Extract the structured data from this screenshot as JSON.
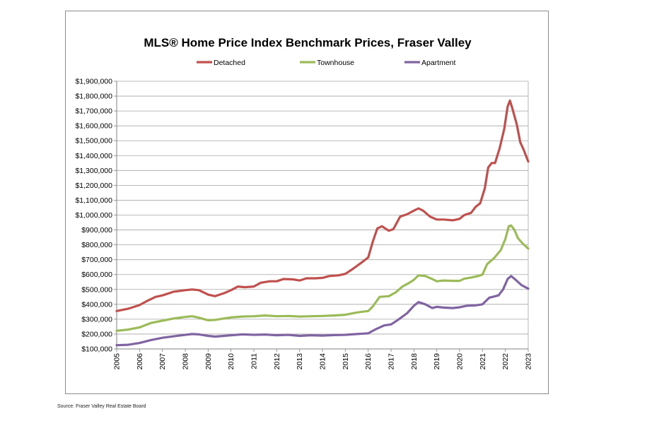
{
  "source": "Source: Fraser Valley Real Estate Board",
  "chart_data": {
    "type": "line",
    "title": "MLS® Home Price Index Benchmark Prices, Fraser Valley",
    "xlabel": "",
    "ylabel": "",
    "xlim": [
      2005,
      2023
    ],
    "ylim": [
      100000,
      1900000
    ],
    "x_ticks": [
      "2005",
      "2006",
      "2007",
      "2008",
      "2009",
      "2010",
      "2011",
      "2012",
      "2013",
      "2014",
      "2015",
      "2016",
      "2017",
      "2018",
      "2019",
      "2020",
      "2021",
      "2022",
      "2023"
    ],
    "y_ticks": [
      "$100,000",
      "$200,000",
      "$300,000",
      "$400,000",
      "$500,000",
      "$600,000",
      "$700,000",
      "$800,000",
      "$900,000",
      "$1,000,000",
      "$1,100,000",
      "$1,200,000",
      "$1,300,000",
      "$1,400,000",
      "$1,500,000",
      "$1,600,000",
      "$1,700,000",
      "$1,800,000",
      "$1,900,000"
    ],
    "grid": true,
    "legend": "top",
    "series": [
      {
        "name": "Detached",
        "color": "#c0504d",
        "points": [
          [
            2005.0,
            355000
          ],
          [
            2005.5,
            370000
          ],
          [
            2006.0,
            395000
          ],
          [
            2006.3,
            420000
          ],
          [
            2006.7,
            450000
          ],
          [
            2007.0,
            460000
          ],
          [
            2007.5,
            485000
          ],
          [
            2008.0,
            495000
          ],
          [
            2008.3,
            500000
          ],
          [
            2008.6,
            495000
          ],
          [
            2009.0,
            465000
          ],
          [
            2009.3,
            455000
          ],
          [
            2009.7,
            475000
          ],
          [
            2010.0,
            495000
          ],
          [
            2010.3,
            520000
          ],
          [
            2010.6,
            515000
          ],
          [
            2011.0,
            520000
          ],
          [
            2011.3,
            545000
          ],
          [
            2011.7,
            555000
          ],
          [
            2012.0,
            555000
          ],
          [
            2012.3,
            570000
          ],
          [
            2012.7,
            568000
          ],
          [
            2013.0,
            560000
          ],
          [
            2013.3,
            575000
          ],
          [
            2013.7,
            575000
          ],
          [
            2014.0,
            578000
          ],
          [
            2014.3,
            590000
          ],
          [
            2014.7,
            595000
          ],
          [
            2015.0,
            605000
          ],
          [
            2015.3,
            635000
          ],
          [
            2015.7,
            680000
          ],
          [
            2016.0,
            715000
          ],
          [
            2016.2,
            820000
          ],
          [
            2016.4,
            910000
          ],
          [
            2016.6,
            925000
          ],
          [
            2016.9,
            895000
          ],
          [
            2017.1,
            905000
          ],
          [
            2017.4,
            990000
          ],
          [
            2017.7,
            1005000
          ],
          [
            2018.0,
            1030000
          ],
          [
            2018.2,
            1045000
          ],
          [
            2018.4,
            1030000
          ],
          [
            2018.7,
            990000
          ],
          [
            2019.0,
            970000
          ],
          [
            2019.3,
            970000
          ],
          [
            2019.7,
            965000
          ],
          [
            2020.0,
            975000
          ],
          [
            2020.2,
            1000000
          ],
          [
            2020.5,
            1015000
          ],
          [
            2020.7,
            1055000
          ],
          [
            2020.9,
            1080000
          ],
          [
            2021.1,
            1180000
          ],
          [
            2021.25,
            1320000
          ],
          [
            2021.4,
            1350000
          ],
          [
            2021.55,
            1350000
          ],
          [
            2021.75,
            1450000
          ],
          [
            2021.95,
            1580000
          ],
          [
            2022.1,
            1730000
          ],
          [
            2022.2,
            1770000
          ],
          [
            2022.3,
            1720000
          ],
          [
            2022.5,
            1610000
          ],
          [
            2022.65,
            1490000
          ],
          [
            2022.8,
            1440000
          ],
          [
            2023.0,
            1360000
          ]
        ]
      },
      {
        "name": "Townhouse",
        "color": "#9bbb59",
        "points": [
          [
            2005.0,
            222000
          ],
          [
            2005.5,
            230000
          ],
          [
            2006.0,
            245000
          ],
          [
            2006.5,
            275000
          ],
          [
            2007.0,
            290000
          ],
          [
            2007.5,
            305000
          ],
          [
            2008.0,
            315000
          ],
          [
            2008.3,
            320000
          ],
          [
            2008.6,
            310000
          ],
          [
            2009.0,
            293000
          ],
          [
            2009.3,
            295000
          ],
          [
            2009.7,
            305000
          ],
          [
            2010.0,
            312000
          ],
          [
            2010.5,
            318000
          ],
          [
            2011.0,
            320000
          ],
          [
            2011.5,
            325000
          ],
          [
            2012.0,
            320000
          ],
          [
            2012.5,
            322000
          ],
          [
            2013.0,
            318000
          ],
          [
            2013.5,
            320000
          ],
          [
            2014.0,
            322000
          ],
          [
            2014.5,
            325000
          ],
          [
            2015.0,
            330000
          ],
          [
            2015.5,
            345000
          ],
          [
            2016.0,
            355000
          ],
          [
            2016.2,
            385000
          ],
          [
            2016.5,
            450000
          ],
          [
            2016.9,
            455000
          ],
          [
            2017.2,
            480000
          ],
          [
            2017.5,
            520000
          ],
          [
            2017.8,
            545000
          ],
          [
            2018.0,
            565000
          ],
          [
            2018.2,
            595000
          ],
          [
            2018.5,
            590000
          ],
          [
            2018.8,
            570000
          ],
          [
            2019.0,
            555000
          ],
          [
            2019.3,
            560000
          ],
          [
            2019.7,
            558000
          ],
          [
            2020.0,
            558000
          ],
          [
            2020.2,
            572000
          ],
          [
            2020.5,
            580000
          ],
          [
            2020.8,
            590000
          ],
          [
            2021.0,
            600000
          ],
          [
            2021.2,
            670000
          ],
          [
            2021.5,
            710000
          ],
          [
            2021.8,
            765000
          ],
          [
            2022.0,
            840000
          ],
          [
            2022.15,
            925000
          ],
          [
            2022.25,
            930000
          ],
          [
            2022.4,
            900000
          ],
          [
            2022.55,
            845000
          ],
          [
            2022.75,
            810000
          ],
          [
            2023.0,
            775000
          ]
        ]
      },
      {
        "name": "Apartment",
        "color": "#8064a2",
        "points": [
          [
            2005.0,
            125000
          ],
          [
            2005.5,
            128000
          ],
          [
            2006.0,
            140000
          ],
          [
            2006.5,
            160000
          ],
          [
            2007.0,
            175000
          ],
          [
            2007.5,
            185000
          ],
          [
            2008.0,
            195000
          ],
          [
            2008.3,
            200000
          ],
          [
            2008.6,
            198000
          ],
          [
            2009.0,
            188000
          ],
          [
            2009.3,
            183000
          ],
          [
            2009.7,
            188000
          ],
          [
            2010.0,
            192000
          ],
          [
            2010.5,
            198000
          ],
          [
            2011.0,
            195000
          ],
          [
            2011.5,
            197000
          ],
          [
            2012.0,
            192000
          ],
          [
            2012.5,
            195000
          ],
          [
            2013.0,
            188000
          ],
          [
            2013.5,
            192000
          ],
          [
            2014.0,
            190000
          ],
          [
            2014.5,
            193000
          ],
          [
            2015.0,
            195000
          ],
          [
            2015.5,
            200000
          ],
          [
            2016.0,
            205000
          ],
          [
            2016.3,
            230000
          ],
          [
            2016.7,
            258000
          ],
          [
            2017.0,
            265000
          ],
          [
            2017.3,
            295000
          ],
          [
            2017.7,
            340000
          ],
          [
            2018.0,
            390000
          ],
          [
            2018.2,
            415000
          ],
          [
            2018.5,
            400000
          ],
          [
            2018.8,
            375000
          ],
          [
            2019.0,
            383000
          ],
          [
            2019.3,
            378000
          ],
          [
            2019.7,
            375000
          ],
          [
            2020.0,
            380000
          ],
          [
            2020.3,
            390000
          ],
          [
            2020.7,
            393000
          ],
          [
            2021.0,
            400000
          ],
          [
            2021.3,
            445000
          ],
          [
            2021.7,
            460000
          ],
          [
            2021.9,
            500000
          ],
          [
            2022.1,
            570000
          ],
          [
            2022.25,
            590000
          ],
          [
            2022.45,
            565000
          ],
          [
            2022.7,
            530000
          ],
          [
            2023.0,
            505000
          ]
        ]
      }
    ]
  }
}
